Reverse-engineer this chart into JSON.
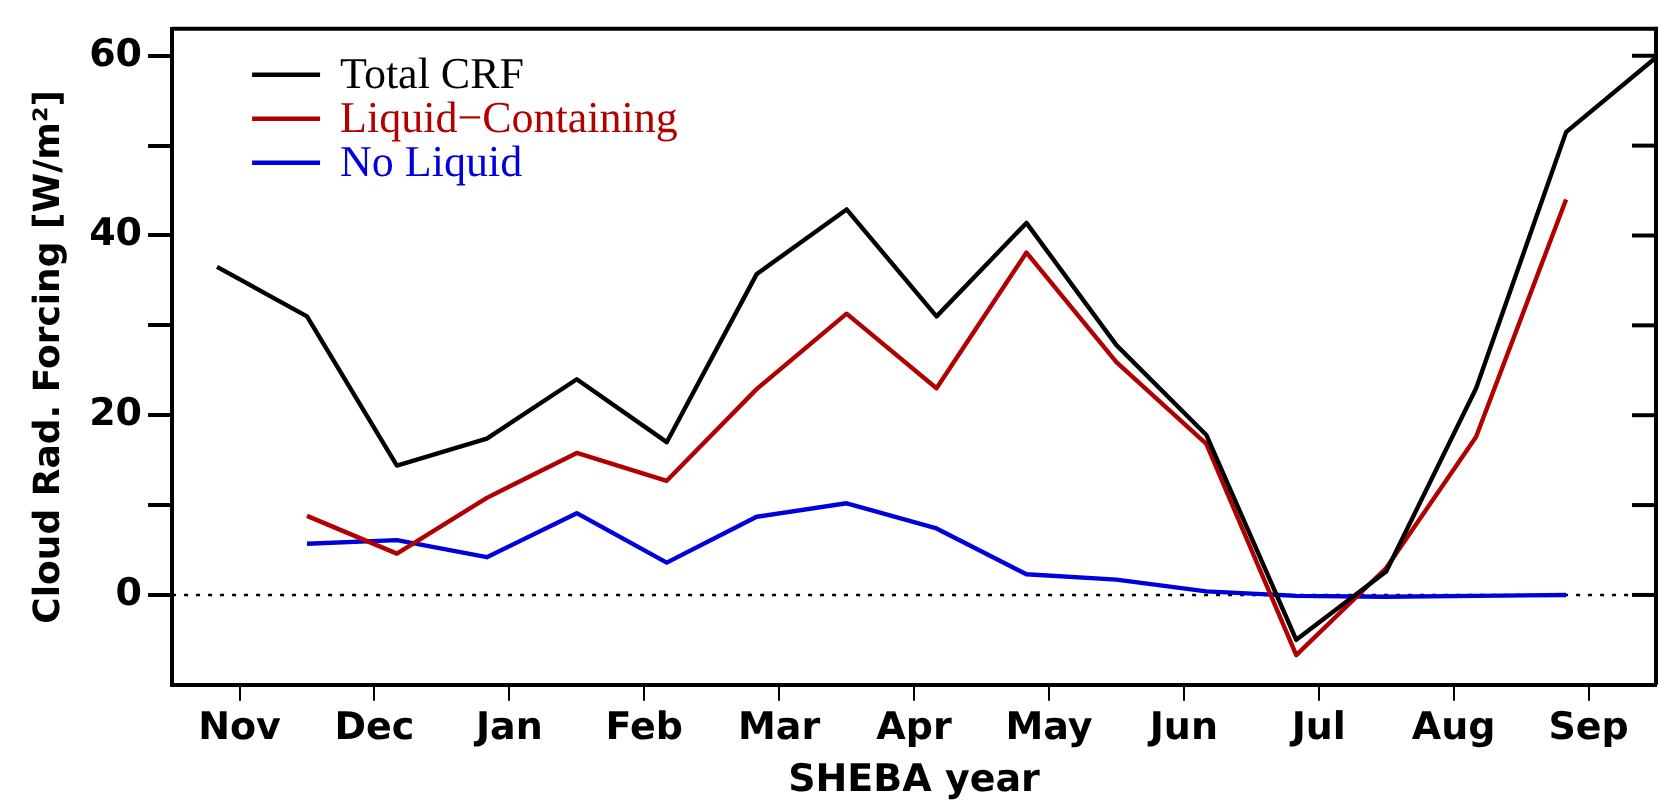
{
  "chart_data": {
    "type": "line",
    "xlabel": "SHEBA year",
    "ylabel": "Cloud Rad. Forcing [W/m²]",
    "categories": [
      null,
      null,
      null,
      "Nov",
      null,
      null,
      null,
      null,
      null,
      "Dec",
      null,
      null,
      null,
      null,
      null,
      "Jan",
      null,
      null,
      null,
      null,
      null,
      "Feb",
      null,
      null,
      null,
      null,
      null,
      "Mar",
      null,
      null,
      null,
      null,
      null,
      "Apr",
      null,
      null,
      null,
      null,
      null,
      "May",
      null,
      null,
      null,
      null,
      null,
      "Jun",
      null,
      null,
      null,
      null,
      null,
      "Jul",
      null,
      null,
      null,
      null,
      null,
      "Aug",
      null,
      null,
      null,
      null,
      null,
      "Sep",
      null,
      null,
      null
    ],
    "ylim": [
      -10,
      63
    ],
    "yticks": [
      0,
      {
        "value": 10,
        "label": null
      },
      20,
      {
        "value": 30,
        "label": null
      },
      40,
      {
        "value": 50,
        "label": null
      },
      60
    ],
    "series": [
      {
        "name": "Total CRF",
        "color": "#000000",
        "values": [
          null,
          null,
          36.5,
          null,
          null,
          null,
          31,
          null,
          null,
          null,
          14.4,
          null,
          null,
          null,
          17.4,
          null,
          null,
          null,
          24,
          null,
          null,
          null,
          17,
          null,
          null,
          null,
          35.7,
          null,
          null,
          null,
          42.9,
          null,
          null,
          null,
          31,
          null,
          null,
          null,
          41.4,
          null,
          null,
          null,
          27.8,
          null,
          null,
          null,
          17.8,
          null,
          null,
          null,
          -5,
          null,
          null,
          null,
          2.6,
          null,
          null,
          null,
          23,
          null,
          null,
          null,
          51.5,
          null,
          null,
          null,
          59.8
        ]
      },
      {
        "name": "Liquid−Containing",
        "color": "#b00000",
        "values": [
          null,
          null,
          null,
          null,
          null,
          null,
          8.8,
          null,
          null,
          null,
          4.6,
          null,
          null,
          null,
          10.8,
          null,
          null,
          null,
          15.8,
          null,
          null,
          null,
          12.7,
          null,
          null,
          null,
          22.9,
          null,
          null,
          null,
          31.3,
          null,
          null,
          null,
          23,
          null,
          null,
          null,
          38.1,
          null,
          null,
          null,
          25.9,
          null,
          null,
          null,
          16.8,
          null,
          null,
          null,
          -6.7,
          null,
          null,
          null,
          3,
          null,
          null,
          null,
          17.6,
          null,
          null,
          null,
          44,
          null,
          null,
          null,
          null
        ]
      },
      {
        "name": "No Liquid",
        "color": "#0000dd",
        "values": [
          null,
          null,
          null,
          null,
          null,
          null,
          5.7,
          null,
          null,
          null,
          6.1,
          null,
          null,
          null,
          4.2,
          null,
          null,
          null,
          9.1,
          null,
          null,
          null,
          3.6,
          null,
          null,
          null,
          8.7,
          null,
          null,
          null,
          10.2,
          null,
          null,
          null,
          7.4,
          null,
          null,
          null,
          2.3,
          null,
          null,
          null,
          1.7,
          null,
          null,
          null,
          0.4,
          null,
          null,
          null,
          -0.1,
          null,
          null,
          null,
          -0.2,
          null,
          null,
          null,
          -0.1,
          null,
          null,
          null,
          0,
          null,
          null,
          null,
          null
        ]
      }
    ],
    "ref_lines": [
      {
        "axis": "y",
        "value": 0,
        "line_style": "dotted",
        "color": "#000000"
      }
    ],
    "legend": "top left",
    "grid": false,
    "marker": "none",
    "line_style": "solid"
  }
}
